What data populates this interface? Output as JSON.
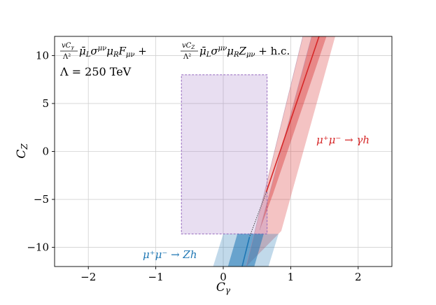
{
  "chart_data": {
    "type": "area",
    "xlabel": "C_γ",
    "ylabel": "C_Z",
    "xlim": [
      -2.5,
      2.5
    ],
    "ylim": [
      -12,
      12
    ],
    "xticks": [
      -2,
      -1,
      0,
      1,
      2
    ],
    "xtick_labels": [
      "−2",
      "−1",
      "0",
      "1",
      "2"
    ],
    "yticks": [
      -10,
      -5,
      0,
      5,
      10
    ],
    "ytick_labels": [
      "−10",
      "−5",
      "0",
      "5",
      "10"
    ],
    "grid": true,
    "operator_text": "vC_γ/Λ² μ̄_L σ^{μν} μ_R F_{μν} + vC_Z/Λ² μ̄_L σ^{μν} μ_R Z_{μν} + h.c.",
    "scale_text": "Λ = 250 TeV",
    "series": [
      {
        "name": "μ⁺μ⁻ → γh",
        "color": "#d62728",
        "central_line": [
          [
            0.64,
            -4.2
          ],
          [
            1.42,
            12
          ]
        ],
        "inner_band": [
          [
            0.54,
            -8.2
          ],
          [
            1.31,
            12
          ],
          [
            1.53,
            12
          ],
          [
            0.74,
            -4.4
          ]
        ],
        "outer_band": [
          [
            0.34,
            -12
          ],
          [
            1.18,
            12
          ],
          [
            1.66,
            12
          ],
          [
            0.86,
            -8.3
          ]
        ]
      },
      {
        "name": "μ⁺μ⁻ → Zh",
        "color": "#1f77b4",
        "central_line": [
          [
            0.28,
            -12
          ],
          [
            0.39,
            -8.9
          ]
        ],
        "inner_band": [
          [
            0.07,
            -12
          ],
          [
            0.21,
            -8.6
          ],
          [
            0.6,
            -8.6
          ],
          [
            0.46,
            -12
          ]
        ],
        "outer_band": [
          [
            -0.15,
            -12
          ],
          [
            0.0,
            -8.6
          ],
          [
            0.82,
            -8.6
          ],
          [
            0.67,
            -12
          ]
        ]
      },
      {
        "name": "",
        "color": "#9467bd",
        "rect": {
          "x0": -0.62,
          "x1": 0.65,
          "y0": -8.6,
          "y1": 8.0
        }
      }
    ],
    "annotations": [
      {
        "text": "μ⁺μ⁻ → γh",
        "x": 1.4,
        "y": 1.2,
        "color": "#d62728"
      },
      {
        "text": "μ⁺μ⁻ → Zh",
        "x": -1.3,
        "y": -10.7,
        "color": "#1f77b4"
      }
    ]
  }
}
